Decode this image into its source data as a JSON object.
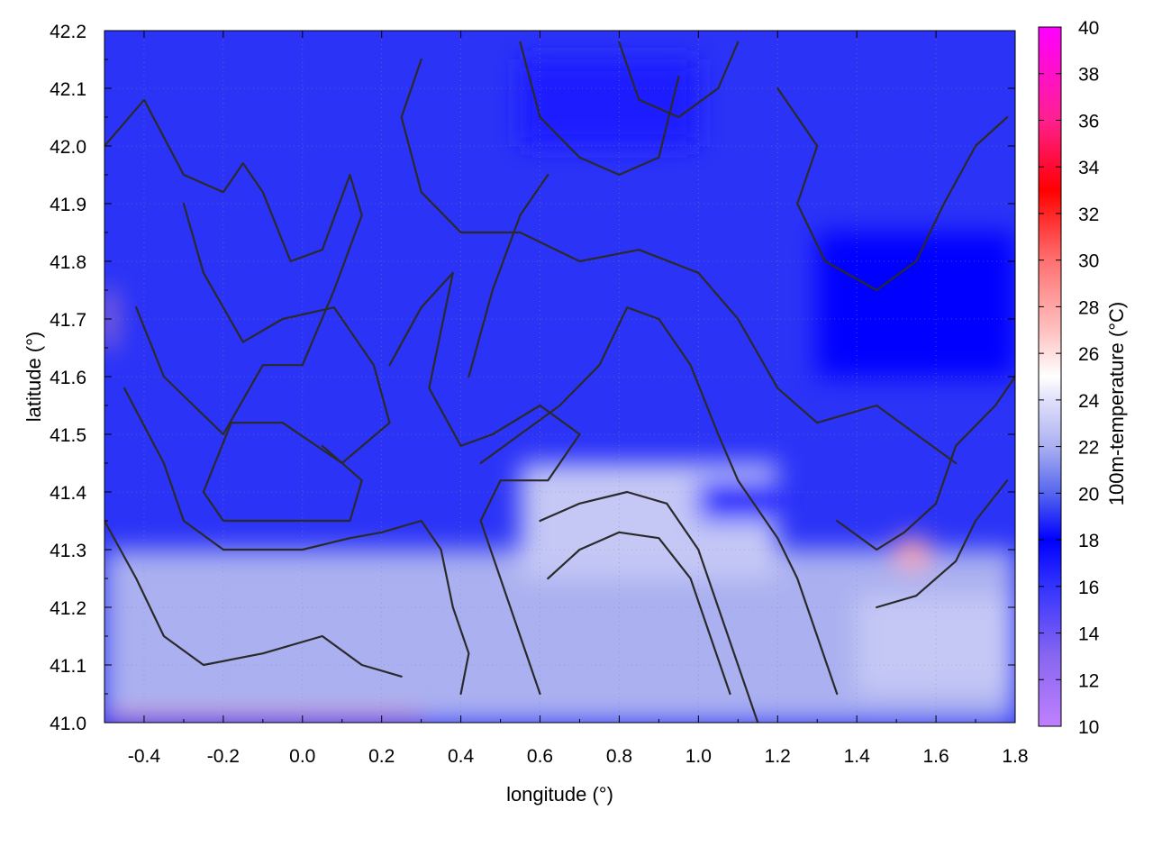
{
  "chart_data": {
    "type": "heatmap",
    "title": "",
    "xlabel": "longitude (°)",
    "ylabel": "latitude (°)",
    "colorbar_label": "100m-temperature (°C)",
    "xlim": [
      -0.5,
      1.8
    ],
    "ylim": [
      41.0,
      42.2
    ],
    "zlim": [
      10,
      40
    ],
    "x_ticks": [
      "-0.4",
      "-0.2",
      "0.0",
      "0.2",
      "0.4",
      "0.6",
      "0.8",
      "1.0",
      "1.2",
      "1.4",
      "1.6",
      "1.8"
    ],
    "x_tick_values": [
      -0.4,
      -0.2,
      0.0,
      0.2,
      0.4,
      0.6,
      0.8,
      1.0,
      1.2,
      1.4,
      1.6,
      1.8
    ],
    "y_ticks": [
      "41.0",
      "41.1",
      "41.2",
      "41.3",
      "41.4",
      "41.5",
      "41.6",
      "41.7",
      "41.8",
      "41.9",
      "42.0",
      "42.1",
      "42.2"
    ],
    "y_tick_values": [
      41.0,
      41.1,
      41.2,
      41.3,
      41.4,
      41.5,
      41.6,
      41.7,
      41.8,
      41.9,
      42.0,
      42.1,
      42.2
    ],
    "colorbar_ticks": [
      "10",
      "12",
      "14",
      "16",
      "18",
      "20",
      "22",
      "24",
      "26",
      "28",
      "30",
      "32",
      "34",
      "36",
      "38",
      "40"
    ],
    "colorbar_tick_values": [
      10,
      12,
      14,
      16,
      18,
      20,
      22,
      24,
      26,
      28,
      30,
      32,
      34,
      36,
      38,
      40
    ],
    "colormap": [
      {
        "value": 10,
        "color": "#c080ff"
      },
      {
        "value": 13,
        "color": "#8866f0"
      },
      {
        "value": 16,
        "color": "#3333ff"
      },
      {
        "value": 18,
        "color": "#0000ff"
      },
      {
        "value": 20,
        "color": "#5566ee"
      },
      {
        "value": 22,
        "color": "#aab0f0"
      },
      {
        "value": 24,
        "color": "#e0e0fa"
      },
      {
        "value": 25,
        "color": "#ffffff"
      },
      {
        "value": 27,
        "color": "#ffc0c0"
      },
      {
        "value": 30,
        "color": "#ff7070"
      },
      {
        "value": 33,
        "color": "#ff0000"
      },
      {
        "value": 36,
        "color": "#ff2090"
      },
      {
        "value": 40,
        "color": "#ff00ff"
      }
    ],
    "background_temperature": 19,
    "temperature_regions": [
      {
        "lon": [
          -0.5,
          1.8
        ],
        "lat": [
          41.0,
          41.3
        ],
        "value": 22
      },
      {
        "lon": [
          0.55,
          1.2
        ],
        "lat": [
          41.25,
          41.45
        ],
        "value": 23
      },
      {
        "lon": [
          1.4,
          1.8
        ],
        "lat": [
          41.05,
          41.22
        ],
        "value": 23
      },
      {
        "lon": [
          1.0,
          1.2
        ],
        "lat": [
          41.35,
          41.42
        ],
        "value": 17
      },
      {
        "lon": [
          0.55,
          1.0
        ],
        "lat": [
          42.0,
          42.15
        ],
        "value": 17
      },
      {
        "lon": [
          1.3,
          1.8
        ],
        "lat": [
          41.6,
          41.85
        ],
        "value": 18
      },
      {
        "lon": [
          1.5,
          1.58
        ],
        "lat": [
          41.27,
          41.32
        ],
        "value": 28
      },
      {
        "lon": [
          -0.5,
          0.3
        ],
        "lat": [
          41.0,
          41.01
        ],
        "value": 30
      },
      {
        "lon": [
          -0.5,
          -0.48
        ],
        "lat": [
          41.65,
          41.75
        ],
        "value": 28
      }
    ],
    "contour_lines": [
      [
        [
          -0.5,
          42.0
        ],
        [
          -0.4,
          42.08
        ],
        [
          -0.3,
          41.95
        ],
        [
          -0.2,
          41.92
        ],
        [
          -0.15,
          41.97
        ],
        [
          -0.1,
          41.92
        ],
        [
          -0.03,
          41.8
        ],
        [
          0.05,
          41.82
        ],
        [
          0.12,
          41.95
        ],
        [
          0.15,
          41.88
        ],
        [
          0.08,
          41.75
        ],
        [
          0.0,
          41.62
        ],
        [
          -0.1,
          41.62
        ],
        [
          -0.2,
          41.5
        ],
        [
          -0.35,
          41.6
        ],
        [
          -0.42,
          41.72
        ]
      ],
      [
        [
          -0.3,
          41.9
        ],
        [
          -0.25,
          41.78
        ],
        [
          -0.15,
          41.66
        ],
        [
          -0.05,
          41.7
        ],
        [
          0.08,
          41.72
        ],
        [
          0.18,
          41.62
        ],
        [
          0.22,
          41.52
        ],
        [
          0.1,
          41.45
        ],
        [
          -0.05,
          41.52
        ],
        [
          -0.18,
          41.52
        ],
        [
          -0.25,
          41.4
        ],
        [
          -0.2,
          41.35
        ],
        [
          -0.05,
          41.35
        ],
        [
          0.12,
          41.35
        ],
        [
          0.15,
          41.42
        ],
        [
          0.05,
          41.48
        ]
      ],
      [
        [
          -0.45,
          41.58
        ],
        [
          -0.35,
          41.45
        ],
        [
          -0.3,
          41.35
        ],
        [
          -0.2,
          41.3
        ],
        [
          0.0,
          41.3
        ],
        [
          0.12,
          41.32
        ],
        [
          0.2,
          41.33
        ],
        [
          0.3,
          41.35
        ],
        [
          0.35,
          41.3
        ],
        [
          0.38,
          41.2
        ],
        [
          0.42,
          41.12
        ],
        [
          0.4,
          41.05
        ]
      ],
      [
        [
          0.22,
          41.62
        ],
        [
          0.3,
          41.72
        ],
        [
          0.38,
          41.78
        ],
        [
          0.32,
          41.58
        ],
        [
          0.4,
          41.48
        ],
        [
          0.48,
          41.5
        ],
        [
          0.6,
          41.55
        ],
        [
          0.7,
          41.5
        ],
        [
          0.62,
          41.42
        ],
        [
          0.5,
          41.42
        ],
        [
          0.45,
          41.35
        ],
        [
          0.5,
          41.25
        ],
        [
          0.55,
          41.15
        ],
        [
          0.6,
          41.05
        ]
      ],
      [
        [
          0.3,
          42.15
        ],
        [
          0.25,
          42.05
        ],
        [
          0.3,
          41.92
        ],
        [
          0.4,
          41.85
        ],
        [
          0.55,
          41.85
        ],
        [
          0.7,
          41.8
        ],
        [
          0.85,
          41.82
        ],
        [
          1.0,
          41.78
        ],
        [
          1.1,
          41.7
        ],
        [
          1.2,
          41.58
        ],
        [
          1.3,
          41.52
        ],
        [
          1.45,
          41.55
        ],
        [
          1.55,
          41.5
        ],
        [
          1.65,
          41.45
        ]
      ],
      [
        [
          0.45,
          41.45
        ],
        [
          0.55,
          41.5
        ],
        [
          0.65,
          41.55
        ],
        [
          0.75,
          41.62
        ],
        [
          0.82,
          41.72
        ],
        [
          0.9,
          41.7
        ],
        [
          0.98,
          41.62
        ],
        [
          1.05,
          41.5
        ],
        [
          1.1,
          41.42
        ],
        [
          1.2,
          41.32
        ],
        [
          1.25,
          41.25
        ],
        [
          1.3,
          41.15
        ],
        [
          1.35,
          41.05
        ]
      ],
      [
        [
          0.6,
          41.35
        ],
        [
          0.7,
          41.38
        ],
        [
          0.82,
          41.4
        ],
        [
          0.92,
          41.38
        ],
        [
          1.0,
          41.3
        ],
        [
          1.05,
          41.2
        ],
        [
          1.1,
          41.1
        ],
        [
          1.15,
          41.0
        ]
      ],
      [
        [
          0.62,
          41.25
        ],
        [
          0.7,
          41.3
        ],
        [
          0.8,
          41.33
        ],
        [
          0.9,
          41.32
        ],
        [
          0.98,
          41.25
        ],
        [
          1.03,
          41.15
        ],
        [
          1.08,
          41.05
        ]
      ],
      [
        [
          1.2,
          42.1
        ],
        [
          1.3,
          42.0
        ],
        [
          1.25,
          41.9
        ],
        [
          1.32,
          41.8
        ],
        [
          1.45,
          41.75
        ],
        [
          1.55,
          41.8
        ],
        [
          1.62,
          41.9
        ],
        [
          1.7,
          42.0
        ],
        [
          1.78,
          42.05
        ]
      ],
      [
        [
          0.8,
          42.18
        ],
        [
          0.85,
          42.08
        ],
        [
          0.95,
          42.05
        ],
        [
          1.05,
          42.1
        ],
        [
          1.1,
          42.18
        ]
      ],
      [
        [
          0.55,
          42.18
        ],
        [
          0.6,
          42.05
        ],
        [
          0.7,
          41.98
        ],
        [
          0.8,
          41.95
        ],
        [
          0.9,
          41.98
        ],
        [
          0.95,
          42.12
        ]
      ],
      [
        [
          1.45,
          41.2
        ],
        [
          1.55,
          41.22
        ],
        [
          1.65,
          41.28
        ],
        [
          1.7,
          41.35
        ],
        [
          1.78,
          41.42
        ]
      ],
      [
        [
          1.35,
          41.35
        ],
        [
          1.45,
          41.3
        ],
        [
          1.52,
          41.33
        ],
        [
          1.6,
          41.38
        ],
        [
          1.65,
          41.48
        ],
        [
          1.75,
          41.55
        ],
        [
          1.8,
          41.6
        ]
      ],
      [
        [
          0.42,
          41.6
        ],
        [
          0.48,
          41.75
        ],
        [
          0.55,
          41.88
        ],
        [
          0.62,
          41.95
        ]
      ],
      [
        [
          -0.5,
          41.35
        ],
        [
          -0.42,
          41.25
        ],
        [
          -0.35,
          41.15
        ],
        [
          -0.25,
          41.1
        ],
        [
          -0.1,
          41.12
        ],
        [
          0.05,
          41.15
        ],
        [
          0.15,
          41.1
        ],
        [
          0.25,
          41.08
        ]
      ]
    ]
  }
}
